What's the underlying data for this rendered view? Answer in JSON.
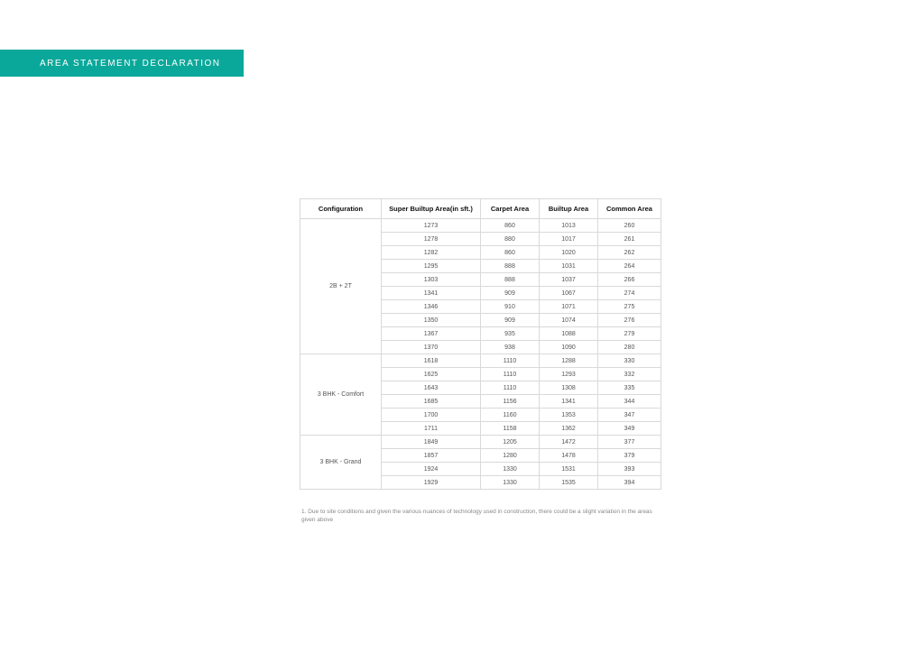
{
  "banner": {
    "text": "AREA STATEMENT DECLARATION",
    "bg_color": "#0aa89a",
    "text_color": "#ffffff"
  },
  "table": {
    "border_color": "#d9d9d9",
    "header_color": "#111111",
    "cell_color": "#555555",
    "columns": [
      "Configuration",
      "Super Builtup Area(in sft.)",
      "Carpet Area",
      "Builtup Area",
      "Common Area"
    ],
    "groups": [
      {
        "label": "2B + 2T",
        "rows": [
          [
            "1273",
            "860",
            "1013",
            "260"
          ],
          [
            "1278",
            "880",
            "1017",
            "261"
          ],
          [
            "1282",
            "860",
            "1020",
            "262"
          ],
          [
            "1295",
            "888",
            "1031",
            "264"
          ],
          [
            "1303",
            "888",
            "1037",
            "266"
          ],
          [
            "1341",
            "909",
            "1067",
            "274"
          ],
          [
            "1346",
            "910",
            "1071",
            "275"
          ],
          [
            "1350",
            "909",
            "1074",
            "276"
          ],
          [
            "1367",
            "935",
            "1088",
            "279"
          ],
          [
            "1370",
            "938",
            "1090",
            "280"
          ]
        ]
      },
      {
        "label": "3 BHK - Comfort",
        "rows": [
          [
            "1618",
            "1110",
            "1288",
            "330"
          ],
          [
            "1625",
            "1110",
            "1293",
            "332"
          ],
          [
            "1643",
            "1110",
            "1308",
            "335"
          ],
          [
            "1685",
            "1156",
            "1341",
            "344"
          ],
          [
            "1700",
            "1160",
            "1353",
            "347"
          ],
          [
            "1711",
            "1158",
            "1362",
            "349"
          ]
        ]
      },
      {
        "label": "3 BHK - Grand",
        "rows": [
          [
            "1849",
            "1205",
            "1472",
            "377"
          ],
          [
            "1857",
            "1280",
            "1478",
            "379"
          ],
          [
            "1924",
            "1330",
            "1531",
            "393"
          ],
          [
            "1929",
            "1330",
            "1535",
            "394"
          ]
        ]
      }
    ]
  },
  "footnote": "1. Due to site conditions and given the various nuances of technology used in construction, there could be a slight variation in the areas given above"
}
